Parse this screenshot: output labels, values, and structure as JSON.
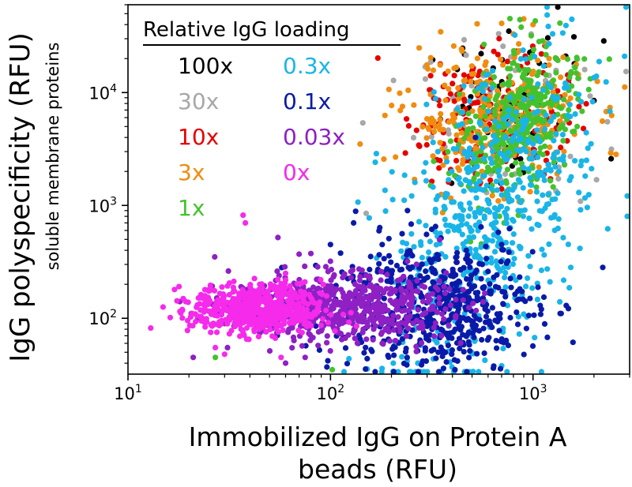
{
  "chart_data": {
    "type": "scatter",
    "xlabel_line1": "Immobilized IgG on Protein A",
    "xlabel_line2": "beads (RFU)",
    "ylabel": "IgG polyspecificity (RFU)",
    "ylabel_sub": "soluble membrane proteins",
    "xscale": "log",
    "yscale": "log",
    "xlim": [
      10,
      3000
    ],
    "ylim": [
      32,
      60000
    ],
    "x_ticks": [
      {
        "value": 10,
        "base": "10",
        "exp": "1"
      },
      {
        "value": 100,
        "base": "10",
        "exp": "2"
      },
      {
        "value": 1000,
        "base": "10",
        "exp": "3"
      }
    ],
    "y_ticks": [
      {
        "value": 100,
        "base": "10",
        "exp": "2"
      },
      {
        "value": 1000,
        "base": "10",
        "exp": "3"
      },
      {
        "value": 10000,
        "base": "10",
        "exp": "4"
      }
    ],
    "legend_title": "Relative IgG loading",
    "legend_placement": "top-left",
    "grid": false,
    "series": [
      {
        "name": "100x",
        "color": "#000000",
        "center": [
          800,
          6000
        ],
        "spread": [
          0.22,
          0.35
        ],
        "n": 60,
        "outliers": [
          [
            2000,
            8500
          ],
          [
            1300,
            20000
          ],
          [
            1600,
            18000
          ],
          [
            1450,
            21000
          ],
          [
            600,
            1100
          ],
          [
            610,
            1500
          ],
          [
            760,
            35000
          ],
          [
            1500,
            12000
          ]
        ]
      },
      {
        "name": "30x",
        "color": "#a8a8a8",
        "center": [
          750,
          6000
        ],
        "spread": [
          0.22,
          0.35
        ],
        "n": 80,
        "outliers": [
          [
            150,
            850
          ],
          [
            590,
            1300
          ],
          [
            1600,
            17000
          ],
          [
            1800,
            16000
          ],
          [
            620,
            1900
          ],
          [
            980,
            33000
          ],
          [
            450,
            11000
          ]
        ]
      },
      {
        "name": "10x",
        "color": "#e60000",
        "center": [
          600,
          6500
        ],
        "spread": [
          0.2,
          0.3
        ],
        "n": 180,
        "outliers": [
          [
            480,
            2500
          ],
          [
            520,
            1900
          ],
          [
            700,
            1400
          ],
          [
            640,
            2800
          ],
          [
            1100,
            22000
          ],
          [
            680,
            30000
          ],
          [
            400,
            12000
          ],
          [
            550,
            1600
          ]
        ]
      },
      {
        "name": "3x",
        "color": "#f08c10",
        "center": [
          650,
          6000
        ],
        "spread": [
          0.22,
          0.28
        ],
        "n": 300,
        "outliers": [
          [
            140,
            3500
          ],
          [
            330,
            5000
          ],
          [
            420,
            4200
          ],
          [
            900,
            45000
          ],
          [
            800,
            33000
          ],
          [
            1000,
            40000
          ],
          [
            700,
            41000
          ],
          [
            1200,
            20000
          ],
          [
            850,
            27000
          ],
          [
            260,
            1700
          ],
          [
            490,
            1600
          ],
          [
            560,
            2000
          ],
          [
            360,
            4700
          ],
          [
            450,
            3000
          ]
        ]
      },
      {
        "name": "1x",
        "color": "#44c22e",
        "center": [
          850,
          5500
        ],
        "spread": [
          0.14,
          0.32
        ],
        "n": 380,
        "outliers": [
          [
            1500,
            7000
          ],
          [
            27,
            45
          ],
          [
            880,
            1100
          ],
          [
            960,
            2600
          ],
          [
            1300,
            15000
          ],
          [
            102,
            35
          ],
          [
            720,
            700
          ],
          [
            1100,
            9000
          ],
          [
            950,
            2000
          ]
        ]
      },
      {
        "name": "0.3x",
        "color": "#19b5e8",
        "center": [
          600,
          700
        ],
        "spread": [
          0.22,
          0.7
        ],
        "n": 600,
        "outliers": [
          [
            270,
            40
          ],
          [
            370,
            350
          ],
          [
            460,
            110
          ],
          [
            320,
            210
          ],
          [
            1000,
            3500
          ],
          [
            280,
            300
          ]
        ]
      },
      {
        "name": "0.1x",
        "color": "#0a1aa8",
        "center": [
          330,
          130
        ],
        "spread": [
          0.25,
          0.28
        ],
        "n": 550,
        "outliers": [
          [
            96,
            37
          ],
          [
            97,
            42
          ],
          [
            130,
            700
          ],
          [
            180,
            450
          ],
          [
            240,
            900
          ],
          [
            330,
            650
          ],
          [
            520,
            4000
          ],
          [
            600,
            260
          ],
          [
            700,
            450
          ],
          [
            750,
            320
          ],
          [
            420,
            350
          ],
          [
            100,
            450
          ]
        ]
      },
      {
        "name": "0.03x",
        "color": "#8e20c4",
        "center": [
          110,
          125
        ],
        "spread": [
          0.26,
          0.14
        ],
        "n": 650,
        "outliers": [
          [
            21,
            45
          ],
          [
            31,
            55
          ],
          [
            55,
            520
          ],
          [
            70,
            370
          ],
          [
            80,
            375
          ],
          [
            100,
            320
          ],
          [
            150,
            240
          ],
          [
            180,
            60
          ],
          [
            240,
            320
          ],
          [
            60,
            40
          ],
          [
            75,
            45
          ]
        ]
      },
      {
        "name": "0x",
        "color": "#f52aeb",
        "center": [
          44,
          120
        ],
        "spread": [
          0.16,
          0.11
        ],
        "n": 600,
        "outliers": [
          [
            37,
            820
          ],
          [
            38,
            700
          ],
          [
            27,
            55
          ],
          [
            30,
            48
          ],
          [
            57,
            45
          ],
          [
            60,
            250
          ]
        ]
      }
    ]
  }
}
